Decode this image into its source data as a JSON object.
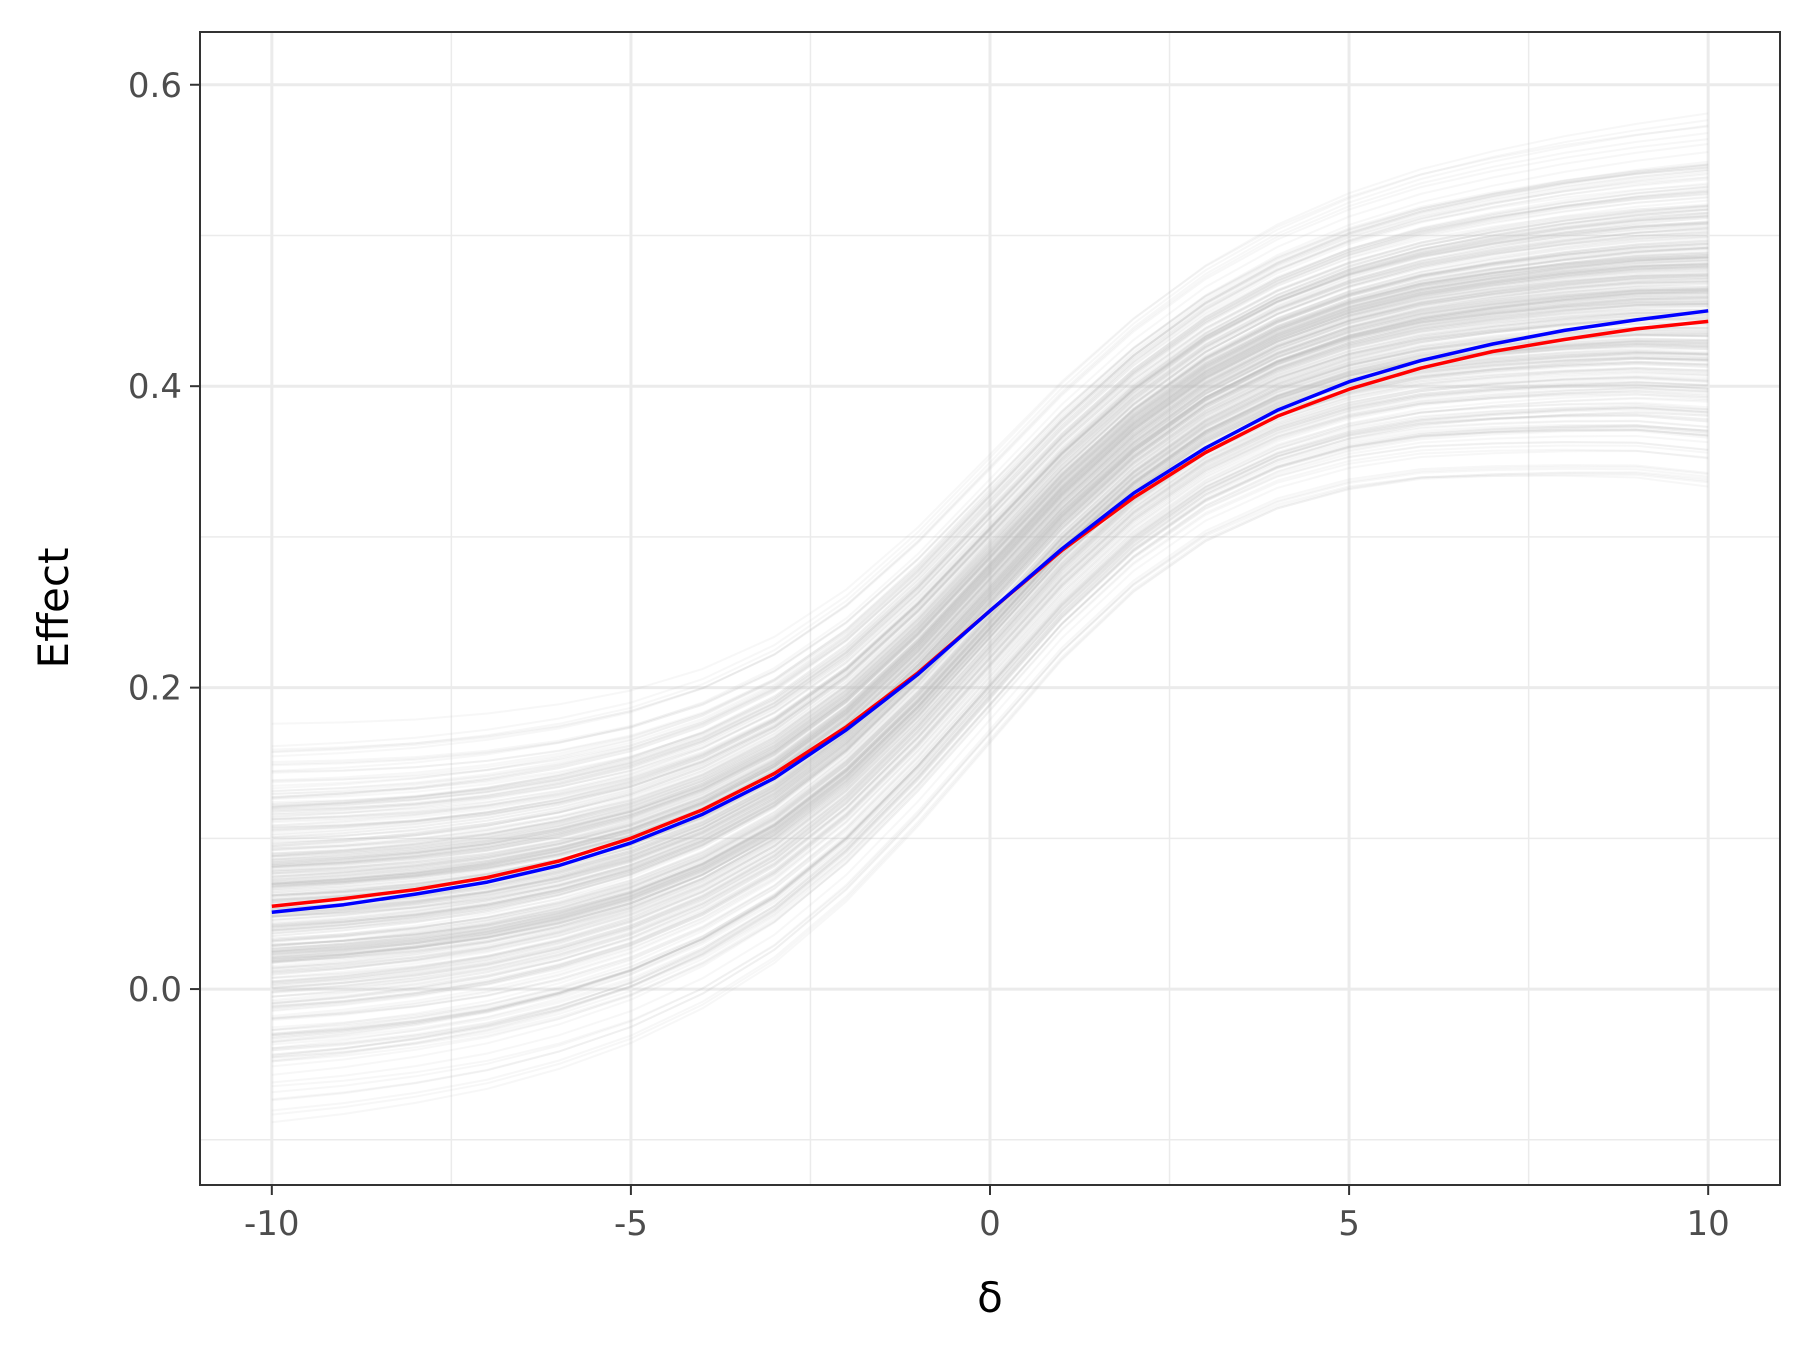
{
  "chart_data": {
    "type": "line",
    "title": "",
    "xlabel": "δ",
    "ylabel": "Effect",
    "xlim": [
      -11,
      11
    ],
    "ylim": [
      -0.13,
      0.635
    ],
    "x_ticks": [
      -10,
      -5,
      0,
      5,
      10
    ],
    "x_tick_labels": [
      "-10",
      "-5",
      "0",
      "5",
      "10"
    ],
    "y_ticks": [
      0.0,
      0.2,
      0.4,
      0.6
    ],
    "y_tick_labels": [
      "0.0",
      "0.2",
      "0.4",
      "0.6"
    ],
    "x_minor_ticks": [
      -7.5,
      -2.5,
      2.5,
      7.5
    ],
    "y_minor_ticks": [
      -0.1,
      0.1,
      0.3,
      0.5
    ],
    "grid": true,
    "theme": "bw",
    "x": [
      -10,
      -9,
      -8,
      -7,
      -6,
      -5,
      -4,
      -3,
      -2,
      -1,
      0,
      1,
      2,
      3,
      4,
      5,
      6,
      7,
      8,
      9,
      10
    ],
    "series": [
      {
        "color": "#ff0000",
        "values": [
          0.055,
          0.06,
          0.066,
          0.074,
          0.085,
          0.1,
          0.119,
          0.143,
          0.174,
          0.21,
          0.251,
          0.291,
          0.326,
          0.356,
          0.38,
          0.398,
          0.412,
          0.423,
          0.431,
          0.438,
          0.443
        ]
      },
      {
        "color": "#0000ff",
        "values": [
          0.051,
          0.056,
          0.063,
          0.071,
          0.082,
          0.097,
          0.116,
          0.14,
          0.172,
          0.209,
          0.251,
          0.292,
          0.329,
          0.359,
          0.384,
          0.403,
          0.417,
          0.428,
          0.437,
          0.444,
          0.45
        ]
      }
    ],
    "band": {
      "color": "#bebebe",
      "opacity": 0.12,
      "count": 400,
      "lower_edge": [
        -0.1,
        -0.095,
        -0.088,
        -0.079,
        -0.066,
        -0.049,
        -0.026,
        0.004,
        0.045,
        0.095,
        0.15,
        0.205,
        0.25,
        0.283,
        0.304,
        0.316,
        0.322,
        0.323,
        0.323,
        0.322,
        0.316
      ],
      "upper_edge": [
        0.195,
        0.196,
        0.198,
        0.202,
        0.208,
        0.217,
        0.231,
        0.252,
        0.283,
        0.324,
        0.372,
        0.42,
        0.462,
        0.497,
        0.524,
        0.545,
        0.561,
        0.573,
        0.583,
        0.591,
        0.598
      ]
    }
  }
}
